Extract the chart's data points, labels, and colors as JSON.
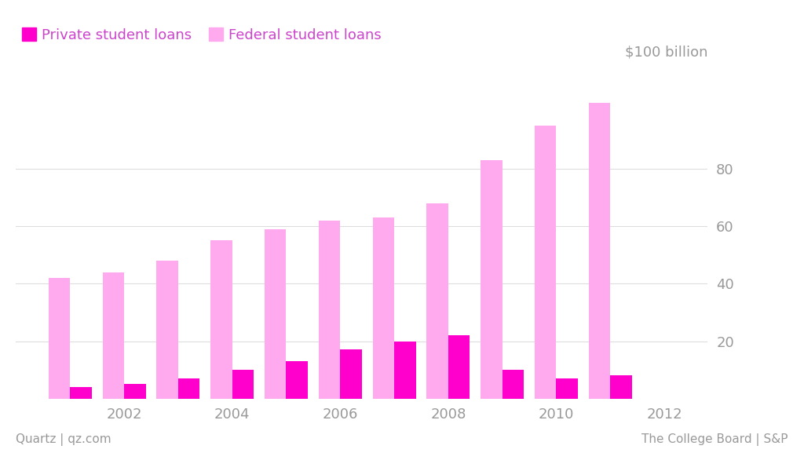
{
  "years": [
    2001,
    2002,
    2003,
    2004,
    2005,
    2006,
    2007,
    2008,
    2009,
    2010,
    2011
  ],
  "private_loans": [
    4,
    5,
    7,
    10,
    13,
    17,
    20,
    22,
    10,
    7,
    8
  ],
  "federal_loans": [
    42,
    44,
    48,
    55,
    59,
    62,
    63,
    68,
    83,
    95,
    103
  ],
  "private_color": "#FF00CC",
  "federal_color": "#FFAAEE",
  "background_color": "#FFFFFF",
  "grid_color": "#DDDDDD",
  "text_color": "#999999",
  "legend_private_label": "Private student loans",
  "legend_federal_label": "Federal student loans",
  "ylabel_annotation": "$100 billion",
  "yticks": [
    20,
    40,
    60,
    80
  ],
  "ylim": [
    0,
    115
  ],
  "xtick_years": [
    2002,
    2004,
    2006,
    2008,
    2010,
    2012
  ],
  "footer_left": "Quartz | qz.com",
  "footer_right": "The College Board | S&P",
  "bar_width": 0.4,
  "legend_fontsize": 13,
  "axis_fontsize": 13,
  "footer_fontsize": 11,
  "annotation_fontsize": 13
}
